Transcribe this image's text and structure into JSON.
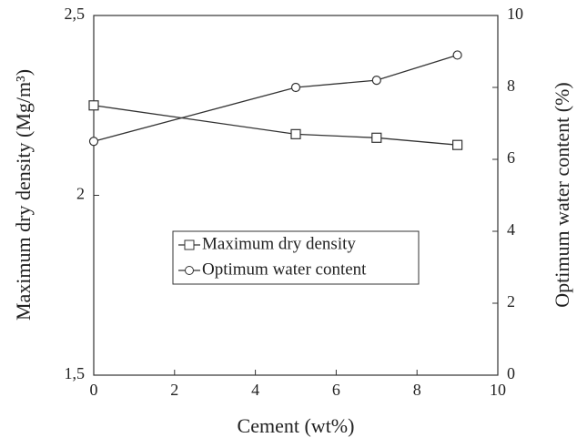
{
  "chart_data": {
    "type": "line",
    "x_label": "Cement (wt%)",
    "y_label": "Maximum dry density (Mg/m³)",
    "y2_label": "Optimum water content (%)",
    "x": [
      0,
      5,
      7,
      9
    ],
    "series": [
      {
        "name": "Maximum dry density",
        "color": "#333333",
        "marker": "square",
        "values": [
          2.25,
          2.17,
          2.16,
          2.14
        ]
      },
      {
        "name": "Optimum water content",
        "color": "#333333",
        "marker": "circle",
        "axis": "y2",
        "values": [
          6.5,
          8.0,
          8.2,
          8.9
        ]
      }
    ],
    "xlim": [
      0,
      10
    ],
    "xticks": [
      0,
      2,
      4,
      6,
      8,
      10
    ],
    "ylim": [
      1.5,
      2.5
    ],
    "yticks": [
      {
        "value": 1.5,
        "label": "1,5"
      },
      2,
      {
        "value": 2.5,
        "label": "2,5"
      }
    ],
    "y2lim": [
      0,
      10
    ],
    "y2ticks": [
      0,
      2,
      4,
      6,
      8,
      10
    ],
    "grid": false,
    "legend": "center-left"
  }
}
